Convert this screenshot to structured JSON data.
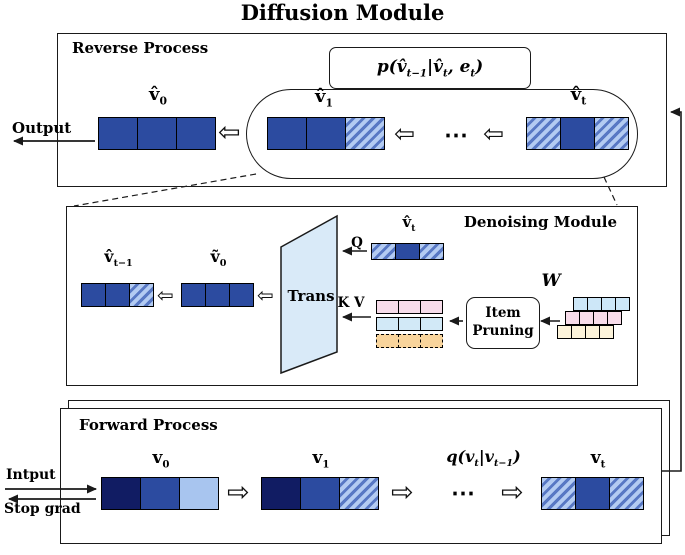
{
  "title": "Diffusion Module",
  "icons": {
    "hollow_arrow_left": "⇦",
    "hollow_arrow_right": "⇨",
    "dots": "⋯"
  },
  "colors": {
    "solid_blue": "#2c4ba0",
    "dark_navy": "#111c63",
    "light_blue": "#a8c5ef",
    "hatch_stripe": "#5878c4",
    "trapezoid_fill": "#d9eaf8",
    "row_pink": "#f7dcea",
    "row_blue": "#d2e9f7",
    "row_orange": "#f8d49c",
    "stack_blue": "#cde7f8",
    "stack_pink": "#f8dcea",
    "stack_cream": "#fcf3da"
  },
  "reverse": {
    "label": "Reverse Process",
    "output_label": "Output",
    "formula": {
      "p1": "p(v̂",
      "s1": "t−1",
      "p2": "|v̂",
      "s2": "t",
      "p3": ", e",
      "s3": "t",
      "p4": ")"
    },
    "v0": {
      "base": "v̂",
      "sub": "0",
      "cells": [
        "solid",
        "solid",
        "solid"
      ]
    },
    "v1": {
      "base": "v̂",
      "sub": "1",
      "cells": [
        "solid",
        "solid",
        "hatch"
      ]
    },
    "vt": {
      "base": "v̂",
      "sub": "t",
      "cells": [
        "hatch",
        "solid",
        "hatch"
      ]
    }
  },
  "denoising": {
    "label": "Denoising Module",
    "trans_label": "Trans",
    "q_label": "Q",
    "kv_label": "K V",
    "w_label": "W",
    "pruning_line1": "Item",
    "pruning_line2": "Pruning",
    "vtm1": {
      "base": "v̂",
      "sub": "t−1",
      "cells": [
        "solid",
        "solid",
        "hatch"
      ]
    },
    "v0tilde": {
      "base": "ṽ",
      "sub": "0",
      "cells": [
        "solid",
        "solid",
        "solid"
      ]
    },
    "vt": {
      "base": "v̂",
      "sub": "t",
      "cells": [
        "hatch",
        "solid",
        "hatch"
      ]
    },
    "item_rows": {
      "row1": [
        "pink",
        "pink",
        "pink"
      ],
      "row2": [
        "lblue",
        "lblue",
        "lblue"
      ],
      "row3": [
        "orange",
        "orange",
        "orange"
      ]
    },
    "stacks": {
      "back": [
        "sblue",
        "sblue",
        "sblue",
        "sblue"
      ],
      "mid": [
        "spink",
        "spink",
        "spink",
        "spink"
      ],
      "front": [
        "scream",
        "scream",
        "scream",
        "scream"
      ]
    }
  },
  "forward": {
    "label": "Forward Process",
    "input_label": "Intput",
    "stopgrad_label": "Stop grad",
    "formula": {
      "p1": "q(v",
      "s1": "t",
      "p2": "|v",
      "s2": "t−1",
      "p3": ")"
    },
    "v0": {
      "base": "v",
      "sub": "0",
      "cells": [
        "navy",
        "solid",
        "light"
      ]
    },
    "v1": {
      "base": "v",
      "sub": "1",
      "cells": [
        "navy",
        "solid",
        "hatch"
      ]
    },
    "vt": {
      "base": "v",
      "sub": "t",
      "cells": [
        "hatch",
        "solid",
        "hatch"
      ]
    }
  }
}
